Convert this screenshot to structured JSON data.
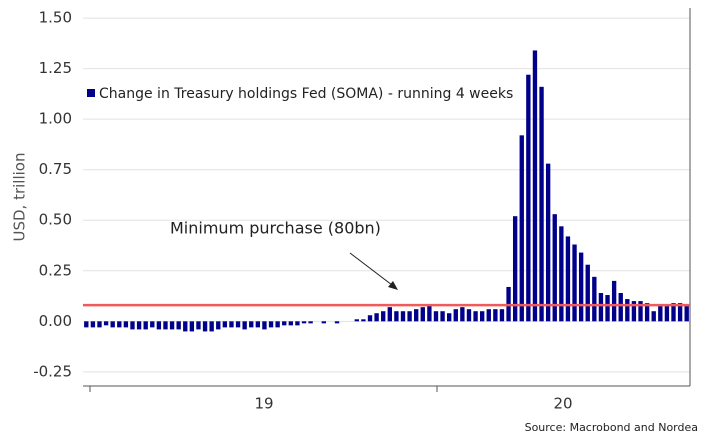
{
  "chart_data": {
    "type": "bar",
    "y_label": "USD, trillion",
    "legend": "Change in Treasury holdings Fed (SOMA) - running 4 weeks",
    "color": "#00008b",
    "year_labels": [
      "19",
      "20"
    ],
    "reference_line": {
      "value": 0.08,
      "color": "#f05a5a"
    },
    "annotation": "Minimum purchase (80bn)",
    "source": "Source: Macrobond and Nordea",
    "ylim": [
      -0.32,
      1.55
    ],
    "yticks": [
      {
        "value": 1.5,
        "label": "1.50"
      },
      {
        "value": 1.25,
        "label": "1.25"
      },
      {
        "value": 1.0,
        "label": "1.00"
      },
      {
        "value": 0.75,
        "label": "0.75"
      },
      {
        "value": 0.5,
        "label": "0.50"
      },
      {
        "value": 0.25,
        "label": "0.25"
      },
      {
        "value": 0,
        "label": "0.00"
      },
      {
        "value": -0.25,
        "label": "-0.25"
      }
    ],
    "grid": true,
    "values": [
      -0.03,
      -0.03,
      -0.03,
      -0.02,
      -0.03,
      -0.03,
      -0.03,
      -0.04,
      -0.04,
      -0.04,
      -0.03,
      -0.04,
      -0.04,
      -0.04,
      -0.04,
      -0.05,
      -0.05,
      -0.04,
      -0.05,
      -0.05,
      -0.04,
      -0.03,
      -0.03,
      -0.03,
      -0.04,
      -0.03,
      -0.03,
      -0.04,
      -0.03,
      -0.03,
      -0.02,
      -0.02,
      -0.02,
      -0.01,
      -0.01,
      0,
      -0.01,
      0,
      -0.01,
      0,
      0,
      0.01,
      0.01,
      0.03,
      0.04,
      0.05,
      0.07,
      0.05,
      0.05,
      0.05,
      0.06,
      0.07,
      0.08,
      0.05,
      0.05,
      0.04,
      0.06,
      0.07,
      0.06,
      0.05,
      0.05,
      0.06,
      0.06,
      0.06,
      0.17,
      0.52,
      0.92,
      1.22,
      1.34,
      1.16,
      0.78,
      0.53,
      0.47,
      0.42,
      0.38,
      0.34,
      0.28,
      0.22,
      0.14,
      0.13,
      0.2,
      0.14,
      0.11,
      0.1,
      0.1,
      0.09,
      0.05,
      0.08,
      0.08,
      0.09,
      0.09,
      0.08
    ]
  }
}
